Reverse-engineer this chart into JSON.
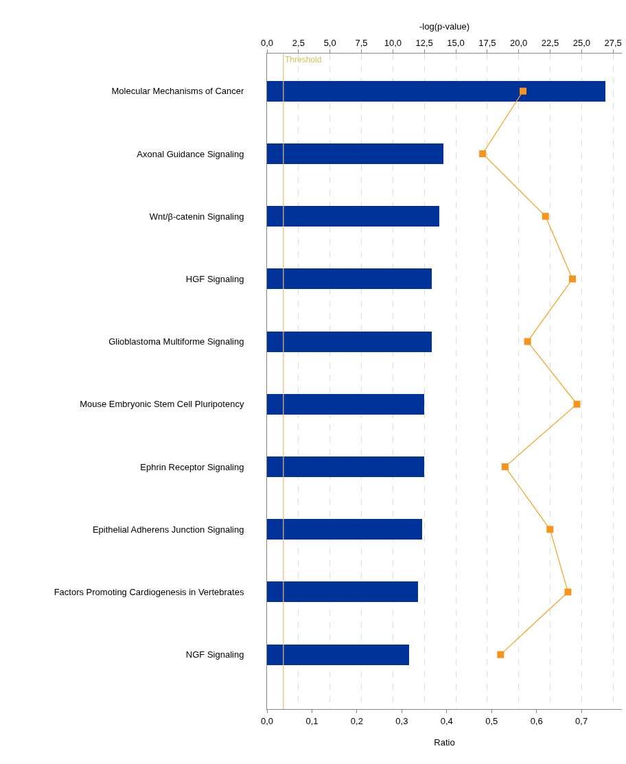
{
  "chart_data": {
    "type": "bar",
    "orientation": "horizontal",
    "categories": [
      "Molecular Mechanisms of Cancer",
      "Axonal Guidance Signaling",
      "Wnt/β-catenin Signaling",
      "HGF Signaling",
      "Glioblastoma Multiforme Signaling",
      "Mouse Embryonic Stem Cell Pluripotency",
      "Ephrin Receptor Signaling",
      "Epithelial Adherens Junction Signaling",
      "Factors Promoting Cardiogenesis in Vertebrates",
      "NGF Signaling"
    ],
    "series": [
      {
        "axis": "x2",
        "color": "#003399",
        "values": [
          26.9,
          14.0,
          13.7,
          13.1,
          13.1,
          12.5,
          12.5,
          12.3,
          12.0,
          11.3
        ]
      },
      {
        "type": "line",
        "color": "#f0a830",
        "marker": "square",
        "values": [
          0.57,
          0.48,
          0.62,
          0.68,
          0.58,
          0.69,
          0.53,
          0.63,
          0.67,
          0.52
        ]
      }
    ],
    "xlabel": "Ratio",
    "x2label": "-log(p-value)",
    "xlim": [
      0,
      0.79
    ],
    "x2lim": [
      0,
      28.2
    ],
    "xticks": [
      {
        "value": 0,
        "label": "0,0"
      },
      {
        "value": 0.1,
        "label": "0,1"
      },
      {
        "value": 0.2,
        "label": "0,2"
      },
      {
        "value": 0.3,
        "label": "0,3"
      },
      {
        "value": 0.4,
        "label": "0,4"
      },
      {
        "value": 0.5,
        "label": "0,5"
      },
      {
        "value": 0.6,
        "label": "0,6"
      },
      {
        "value": 0.7,
        "label": "0,7"
      }
    ],
    "x2ticks": [
      {
        "value": 0,
        "label": "0,0"
      },
      {
        "value": 2.5,
        "label": "2,5"
      },
      {
        "value": 5,
        "label": "5,0"
      },
      {
        "value": 7.5,
        "label": "7,5"
      },
      {
        "value": 10,
        "label": "10,0"
      },
      {
        "value": 12.5,
        "label": "12,5"
      },
      {
        "value": 15,
        "label": "15,0"
      },
      {
        "value": 17.5,
        "label": "17,5"
      },
      {
        "value": 20,
        "label": "20,0"
      },
      {
        "value": 22.5,
        "label": "22,5"
      },
      {
        "value": 25,
        "label": "25,0"
      },
      {
        "value": 27.5,
        "label": "27,5"
      }
    ],
    "ref_lines": [
      {
        "axis": "x2",
        "value": 1.3,
        "label": "Threshold",
        "color": "#e8b880"
      }
    ],
    "grid": "x"
  }
}
